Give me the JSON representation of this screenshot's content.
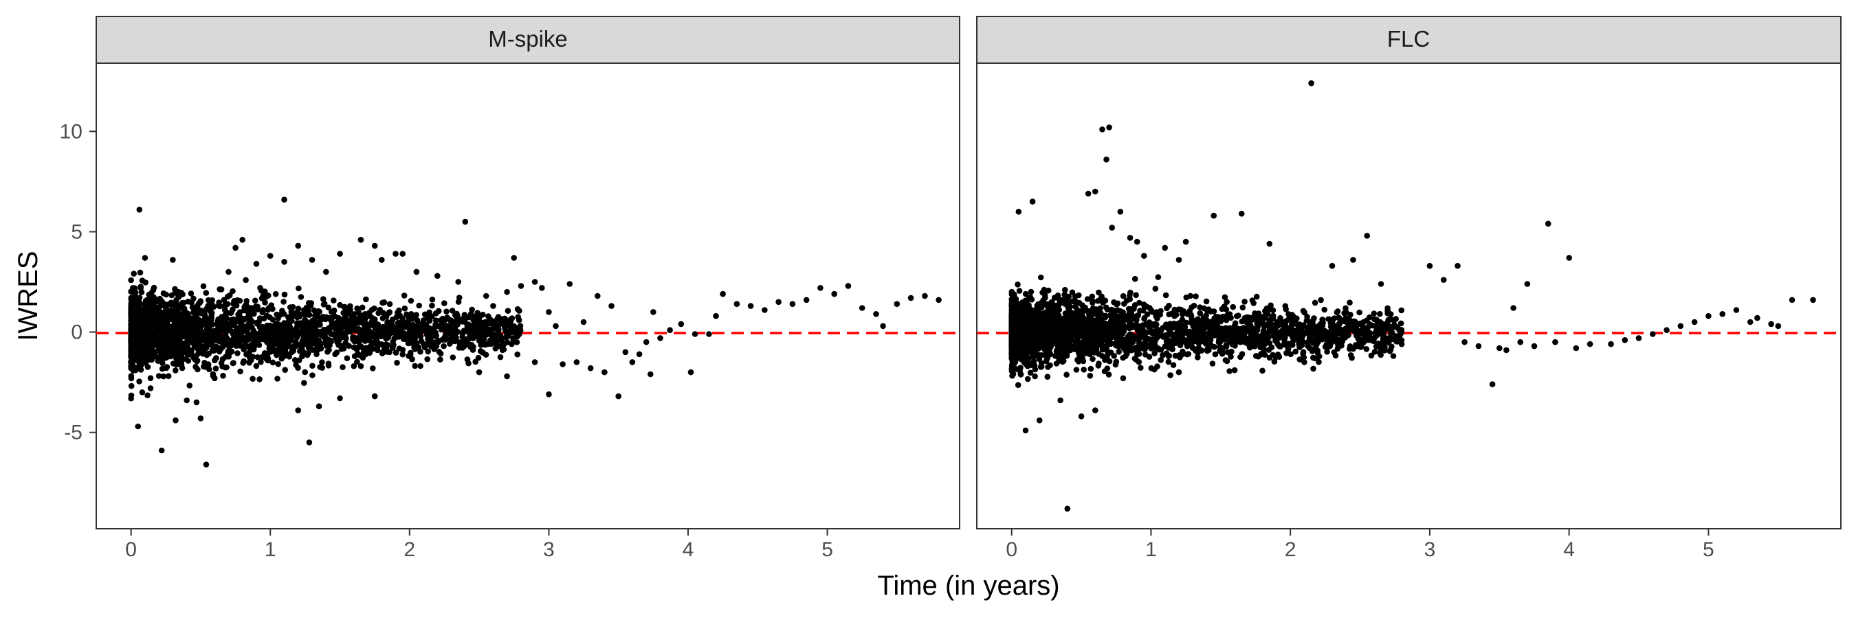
{
  "chart_data": {
    "type": "scatter",
    "xlabel": "Time (in years)",
    "ylabel": "IWRES",
    "xlim": [
      -0.25,
      5.95
    ],
    "ylim": [
      -9.8,
      13.4
    ],
    "x_ticks": [
      0,
      1,
      2,
      3,
      4,
      5
    ],
    "x_tick_labels": [
      "0",
      "1",
      "2",
      "3",
      "4",
      "5"
    ],
    "y_ticks": [
      -5,
      0,
      5,
      10
    ],
    "y_tick_labels": [
      "-5",
      "0",
      "5",
      "10"
    ],
    "reference_line": {
      "y": 0,
      "style": "dashed",
      "color": "#ff0000"
    },
    "grid": false,
    "point_color": "#000000",
    "panels": [
      {
        "name": "M-spike",
        "dense_region": {
          "x_range": [
            0.0,
            2.8
          ],
          "note": "thousands of points concentrated near 0, spread decreasing with time"
        },
        "points": [
          [
            0.06,
            6.1
          ],
          [
            0.1,
            3.7
          ],
          [
            0.3,
            3.6
          ],
          [
            0.05,
            -4.7
          ],
          [
            0.08,
            -3.0
          ],
          [
            0.14,
            -2.8
          ],
          [
            0.22,
            -5.9
          ],
          [
            0.32,
            -4.4
          ],
          [
            0.47,
            -3.5
          ],
          [
            0.54,
            -6.6
          ],
          [
            0.5,
            -4.3
          ],
          [
            0.4,
            -3.4
          ],
          [
            0.6,
            -2.3
          ],
          [
            0.7,
            3.0
          ],
          [
            0.75,
            4.2
          ],
          [
            0.8,
            4.6
          ],
          [
            0.9,
            3.4
          ],
          [
            1.0,
            3.8
          ],
          [
            1.1,
            3.5
          ],
          [
            1.1,
            6.6
          ],
          [
            1.2,
            4.3
          ],
          [
            1.3,
            3.6
          ],
          [
            1.28,
            -5.5
          ],
          [
            1.2,
            -3.9
          ],
          [
            1.35,
            -3.7
          ],
          [
            1.4,
            3.0
          ],
          [
            1.5,
            3.9
          ],
          [
            1.65,
            4.6
          ],
          [
            1.75,
            4.3
          ],
          [
            1.8,
            3.6
          ],
          [
            1.9,
            3.9
          ],
          [
            1.95,
            3.9
          ],
          [
            1.5,
            -3.3
          ],
          [
            1.75,
            -3.2
          ],
          [
            2.05,
            3.0
          ],
          [
            2.2,
            2.8
          ],
          [
            2.35,
            2.5
          ],
          [
            2.4,
            5.5
          ],
          [
            2.55,
            1.8
          ],
          [
            2.6,
            1.3
          ],
          [
            2.7,
            2.0
          ],
          [
            2.75,
            3.7
          ],
          [
            2.8,
            2.3
          ],
          [
            2.5,
            -2.0
          ],
          [
            2.7,
            -2.2
          ],
          [
            2.9,
            2.5
          ],
          [
            2.95,
            2.2
          ],
          [
            3.0,
            1.0
          ],
          [
            3.05,
            0.3
          ],
          [
            3.15,
            2.4
          ],
          [
            3.25,
            0.5
          ],
          [
            3.35,
            1.8
          ],
          [
            3.45,
            1.3
          ],
          [
            2.9,
            -1.5
          ],
          [
            3.0,
            -3.1
          ],
          [
            3.1,
            -1.6
          ],
          [
            3.2,
            -1.5
          ],
          [
            3.3,
            -1.8
          ],
          [
            3.4,
            -2.0
          ],
          [
            3.5,
            -3.2
          ],
          [
            3.55,
            -1.0
          ],
          [
            3.6,
            -1.5
          ],
          [
            3.65,
            -1.1
          ],
          [
            3.7,
            -0.5
          ],
          [
            3.8,
            -0.3
          ],
          [
            3.87,
            0.1
          ],
          [
            3.95,
            0.4
          ],
          [
            4.05,
            -0.1
          ],
          [
            4.15,
            -0.1
          ],
          [
            3.75,
            1.0
          ],
          [
            3.73,
            -2.1
          ],
          [
            4.02,
            -2.0
          ],
          [
            4.2,
            0.8
          ],
          [
            4.25,
            1.9
          ],
          [
            4.35,
            1.4
          ],
          [
            4.45,
            1.3
          ],
          [
            4.55,
            1.1
          ],
          [
            4.65,
            1.5
          ],
          [
            4.75,
            1.4
          ],
          [
            4.85,
            1.6
          ],
          [
            4.95,
            2.2
          ],
          [
            5.05,
            1.9
          ],
          [
            5.15,
            2.3
          ],
          [
            5.25,
            1.2
          ],
          [
            5.35,
            0.9
          ],
          [
            5.4,
            0.3
          ],
          [
            5.5,
            1.4
          ],
          [
            5.6,
            1.7
          ],
          [
            5.7,
            1.8
          ],
          [
            5.8,
            1.6
          ]
        ]
      },
      {
        "name": "FLC",
        "dense_region": {
          "x_range": [
            0.0,
            2.8
          ],
          "note": "thousands of points concentrated near 0, spread decreasing with time"
        },
        "points": [
          [
            0.05,
            6.0
          ],
          [
            0.15,
            6.5
          ],
          [
            0.55,
            6.9
          ],
          [
            0.6,
            7.0
          ],
          [
            0.65,
            10.1
          ],
          [
            0.7,
            10.2
          ],
          [
            0.68,
            8.6
          ],
          [
            0.78,
            6.0
          ],
          [
            0.72,
            5.2
          ],
          [
            0.85,
            4.7
          ],
          [
            0.9,
            4.5
          ],
          [
            0.95,
            3.8
          ],
          [
            1.1,
            4.2
          ],
          [
            1.2,
            3.6
          ],
          [
            1.25,
            4.5
          ],
          [
            1.45,
            5.8
          ],
          [
            1.65,
            5.9
          ],
          [
            1.85,
            4.4
          ],
          [
            2.15,
            12.4
          ],
          [
            2.3,
            3.3
          ],
          [
            2.45,
            3.6
          ],
          [
            2.55,
            4.8
          ],
          [
            2.65,
            2.4
          ],
          [
            3.0,
            3.3
          ],
          [
            3.1,
            2.6
          ],
          [
            3.2,
            3.3
          ],
          [
            3.85,
            5.4
          ],
          [
            4.0,
            3.7
          ],
          [
            3.7,
            2.4
          ],
          [
            3.6,
            1.2
          ],
          [
            0.4,
            -8.8
          ],
          [
            0.1,
            -4.9
          ],
          [
            0.2,
            -4.4
          ],
          [
            0.5,
            -4.2
          ],
          [
            0.6,
            -3.9
          ],
          [
            0.35,
            -3.4
          ],
          [
            0.8,
            -2.3
          ],
          [
            1.2,
            -2.0
          ],
          [
            1.6,
            -1.9
          ],
          [
            2.1,
            -1.5
          ],
          [
            3.25,
            -0.5
          ],
          [
            3.35,
            -0.7
          ],
          [
            3.45,
            -2.6
          ],
          [
            3.5,
            -0.8
          ],
          [
            3.55,
            -0.9
          ],
          [
            3.65,
            -0.5
          ],
          [
            3.75,
            -0.7
          ],
          [
            3.9,
            -0.5
          ],
          [
            4.05,
            -0.8
          ],
          [
            4.15,
            -0.6
          ],
          [
            4.3,
            -0.6
          ],
          [
            4.4,
            -0.4
          ],
          [
            4.5,
            -0.3
          ],
          [
            4.6,
            -0.1
          ],
          [
            4.7,
            0.1
          ],
          [
            4.8,
            0.3
          ],
          [
            4.9,
            0.5
          ],
          [
            5.0,
            0.8
          ],
          [
            5.1,
            0.9
          ],
          [
            5.2,
            1.1
          ],
          [
            5.3,
            0.5
          ],
          [
            5.35,
            0.7
          ],
          [
            5.45,
            0.4
          ],
          [
            5.6,
            1.6
          ],
          [
            5.75,
            1.6
          ],
          [
            5.5,
            0.3
          ]
        ]
      }
    ]
  }
}
